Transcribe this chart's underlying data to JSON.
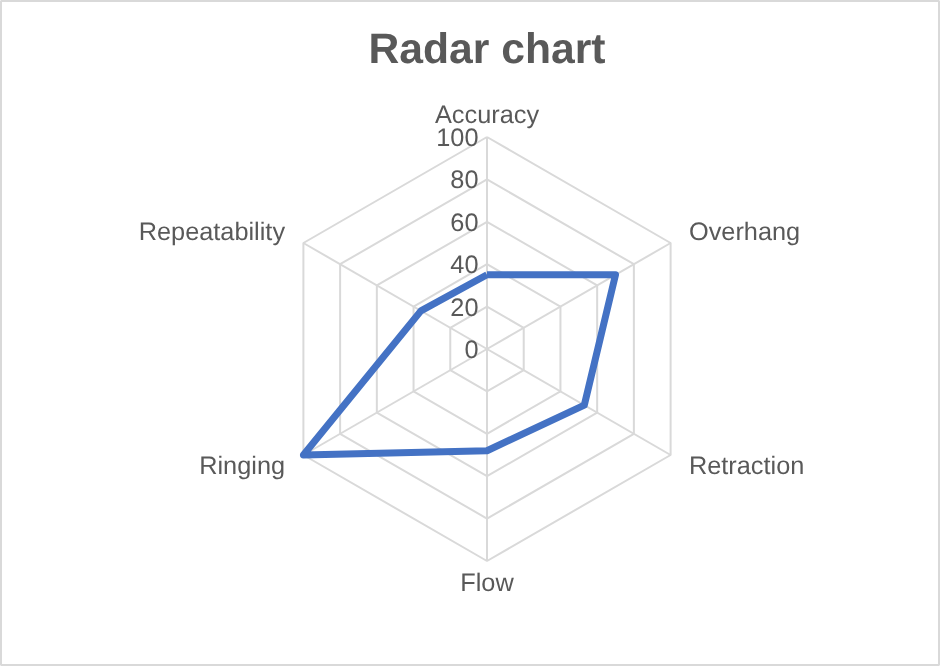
{
  "chart_data": {
    "type": "radar",
    "title": "Radar chart",
    "categories": [
      "Accuracy",
      "Overhang",
      "Retraction",
      "Flow",
      "Ringing",
      "Repeatability"
    ],
    "series": [
      {
        "color": "#4472c4",
        "values": [
          35,
          70,
          53,
          48,
          100,
          36
        ]
      }
    ],
    "ylim": [
      0,
      100
    ],
    "yticks": [
      0,
      20,
      40,
      60,
      80,
      100
    ],
    "grid": true
  }
}
